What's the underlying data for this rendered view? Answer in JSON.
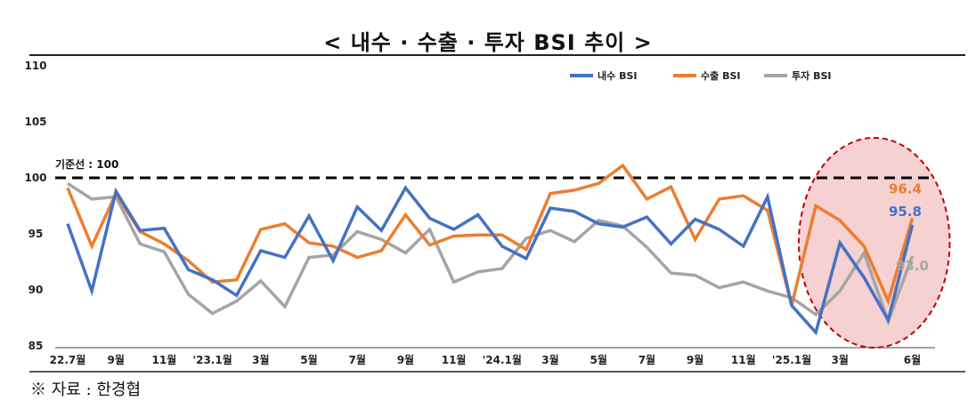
{
  "chart_data": {
    "type": "line",
    "title": "< 내수 · 수출 · 투자 BSI 추이 >",
    "ylim": [
      85,
      110
    ],
    "yticks": [
      85,
      90,
      95,
      100,
      105,
      110
    ],
    "x": [
      "22.7",
      "22.8",
      "22.9",
      "22.10",
      "22.11",
      "22.12",
      "23.1",
      "23.2",
      "23.3",
      "23.4",
      "23.5",
      "23.6",
      "23.7",
      "23.8",
      "23.9",
      "23.10",
      "23.11",
      "23.12",
      "24.1",
      "24.2",
      "24.3",
      "24.4",
      "24.5",
      "24.6",
      "24.7",
      "24.8",
      "24.9",
      "24.10",
      "24.11",
      "24.12",
      "25.1",
      "25.2",
      "25.3",
      "25.4",
      "25.5",
      "25.6"
    ],
    "xtick_labels": [
      {
        "index": 0,
        "label": "22.7월"
      },
      {
        "index": 2,
        "label": "9월"
      },
      {
        "index": 4,
        "label": "11월"
      },
      {
        "index": 6,
        "label": "'23.1월"
      },
      {
        "index": 8,
        "label": "3월"
      },
      {
        "index": 10,
        "label": "5월"
      },
      {
        "index": 12,
        "label": "7월"
      },
      {
        "index": 14,
        "label": "9월"
      },
      {
        "index": 16,
        "label": "11월"
      },
      {
        "index": 18,
        "label": "'24.1월"
      },
      {
        "index": 20,
        "label": "3월"
      },
      {
        "index": 22,
        "label": "5월"
      },
      {
        "index": 24,
        "label": "7월"
      },
      {
        "index": 26,
        "label": "9월"
      },
      {
        "index": 28,
        "label": "11월"
      },
      {
        "index": 30,
        "label": "'25.1월"
      },
      {
        "index": 32,
        "label": "3월"
      },
      {
        "index": 35,
        "label": "6월"
      }
    ],
    "series": [
      {
        "name": "내수 BSI",
        "color": "#4472C4",
        "values": [
          95.9,
          89.9,
          98.8,
          95.3,
          95.5,
          91.8,
          90.9,
          89.5,
          93.5,
          92.9,
          96.6,
          92.6,
          97.4,
          95.3,
          99.1,
          96.4,
          95.4,
          96.7,
          93.9,
          92.8,
          97.3,
          97.0,
          95.9,
          95.6,
          96.5,
          94.1,
          96.3,
          95.4,
          93.9,
          98.3,
          88.6,
          86.2,
          94.2,
          91.1,
          87.3,
          95.8
        ]
      },
      {
        "name": "수출 BSI",
        "color": "#ED7D31",
        "values": [
          99.1,
          93.9,
          98.6,
          95.2,
          94.1,
          92.6,
          90.7,
          90.9,
          95.4,
          95.9,
          94.2,
          93.9,
          92.9,
          93.5,
          96.7,
          94.0,
          94.8,
          94.9,
          94.9,
          93.6,
          98.6,
          98.9,
          99.5,
          101.1,
          98.1,
          99.2,
          94.5,
          98.1,
          98.4,
          97.1,
          88.6,
          97.5,
          96.2,
          93.9,
          89.0,
          96.4
        ]
      },
      {
        "name": "투자 BSI",
        "color": "#A5A5A5",
        "values": [
          99.5,
          98.1,
          98.3,
          94.1,
          93.4,
          89.6,
          87.9,
          89.0,
          90.8,
          88.5,
          92.9,
          93.1,
          95.2,
          94.5,
          93.3,
          95.4,
          90.7,
          91.6,
          91.9,
          94.6,
          95.3,
          94.3,
          96.2,
          95.7,
          93.8,
          91.5,
          91.3,
          90.2,
          90.7,
          89.9,
          89.3,
          87.8,
          89.9,
          93.3,
          87.2,
          93.0
        ]
      }
    ],
    "reference_line": {
      "value": 100,
      "label": "기준선 : 100"
    },
    "annotations": [
      {
        "text": "96.4",
        "series": 1,
        "index": 35,
        "color": "#ED7D31"
      },
      {
        "text": "95.8",
        "series": 0,
        "index": 35,
        "color": "#4472C4"
      },
      {
        "text": "93.0",
        "series": 2,
        "index": 35,
        "color": "#A5A5A5"
      }
    ],
    "highlight_region": {
      "from_index": 30,
      "to_index": 35
    },
    "legend_position": "top-right",
    "grid": false
  },
  "source": "※ 자료 : 한경협"
}
